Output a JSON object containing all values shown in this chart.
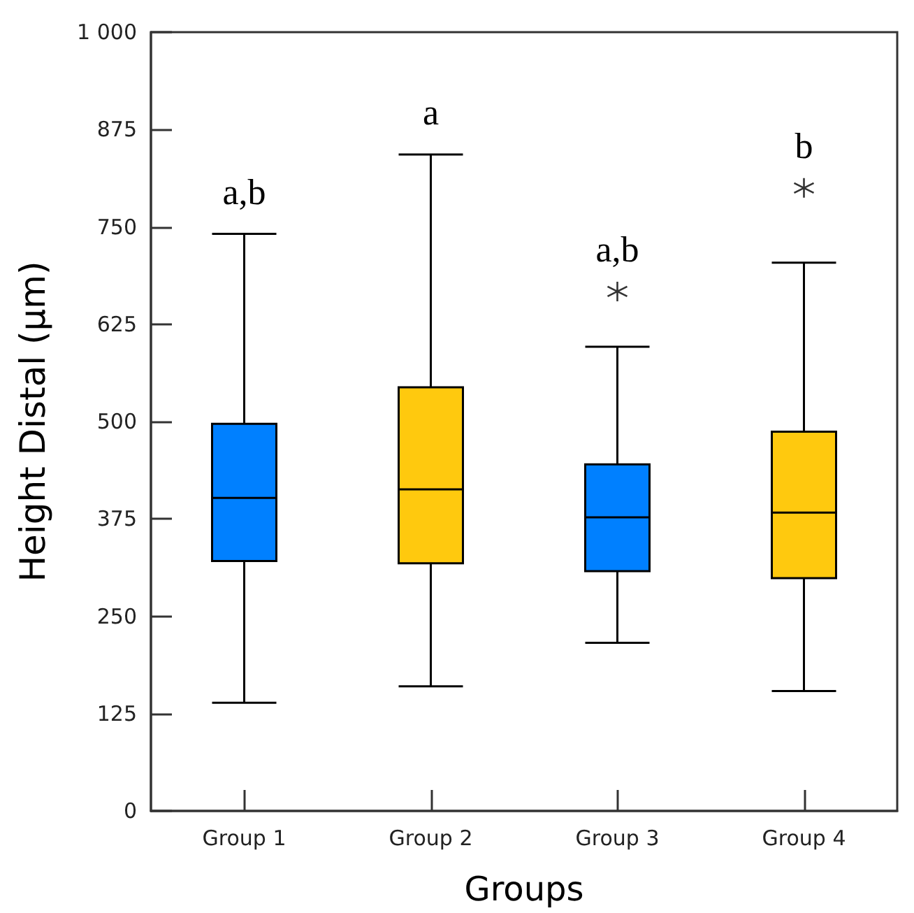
{
  "chart_data": {
    "type": "box",
    "categories": [
      "Group 1",
      "Group 2",
      "Group 3",
      "Group 4"
    ],
    "boxes": [
      {
        "low": 139,
        "q1": 321,
        "median": 402,
        "q3": 497,
        "high": 741
      },
      {
        "low": 160,
        "q1": 318,
        "median": 413,
        "q3": 544,
        "high": 843
      },
      {
        "low": 216,
        "q1": 308,
        "median": 377,
        "q3": 445,
        "high": 596,
        "outliers": [
          667
        ]
      },
      {
        "low": 154,
        "q1": 299,
        "median": 383,
        "q3": 487,
        "high": 704,
        "outliers": [
          800
        ]
      }
    ],
    "colors": [
      "#0080ff",
      "#ffc90e",
      "#0080ff",
      "#ffc90e"
    ],
    "xlabel": "Groups",
    "ylabel": "Height Distal (μm)",
    "ylim": [
      0,
      1000
    ],
    "yticks": [
      0,
      125,
      250,
      375,
      500,
      625,
      750,
      875,
      {
        "value": 1000,
        "label": "1 000"
      }
    ],
    "annotations": [
      "a,b",
      "a",
      "a,b",
      "b"
    ],
    "grid": false
  }
}
